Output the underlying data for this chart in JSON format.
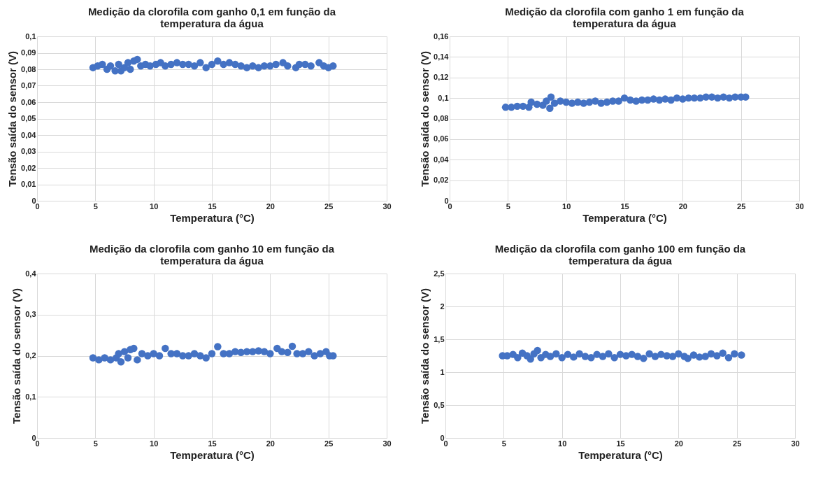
{
  "chart_data": [
    {
      "type": "scatter",
      "title": "Medição da clorofila com ganho 0,1 em função da temperatura da água",
      "xlabel": "Temperatura (°C)",
      "ylabel": "Tensão saída do sensor (V)",
      "marker": "circle",
      "grid": true,
      "xlim": [
        0,
        30
      ],
      "xticks": [
        0,
        5,
        10,
        15,
        20,
        25,
        30
      ],
      "ylim": [
        0,
        0.1
      ],
      "yticks": [
        0,
        {
          "value": 0.01,
          "label": "0,01"
        },
        {
          "value": 0.02,
          "label": "0,02"
        },
        {
          "value": 0.03,
          "label": "0,03"
        },
        {
          "value": 0.04,
          "label": "0,04"
        },
        {
          "value": 0.05,
          "label": "0,05"
        },
        {
          "value": 0.06,
          "label": "0,06"
        },
        {
          "value": 0.07,
          "label": "0,07"
        },
        {
          "value": 0.08,
          "label": "0,08"
        },
        {
          "value": 0.09,
          "label": "0,09"
        },
        {
          "value": 0.1,
          "label": "0,1"
        }
      ],
      "series": [
        {
          "color": "#4472c4",
          "x": [
            4.8,
            5.2,
            5.6,
            6.0,
            6.3,
            6.7,
            7.0,
            7.2,
            7.5,
            7.8,
            8.0,
            8.3,
            8.6,
            8.9,
            9.3,
            9.7,
            10.2,
            10.6,
            11.0,
            11.5,
            12.0,
            12.5,
            13.0,
            13.5,
            14.0,
            14.5,
            15.0,
            15.5,
            16.0,
            16.5,
            17.0,
            17.5,
            18.0,
            18.5,
            19.0,
            19.5,
            20.0,
            20.5,
            21.1,
            21.5,
            22.2,
            22.5,
            23.0,
            23.5,
            24.2,
            24.6,
            25.0,
            25.4
          ],
          "values": [
            0.081,
            0.082,
            0.083,
            0.08,
            0.082,
            0.079,
            0.083,
            0.079,
            0.081,
            0.084,
            0.08,
            0.085,
            0.086,
            0.082,
            0.083,
            0.082,
            0.083,
            0.084,
            0.082,
            0.083,
            0.084,
            0.083,
            0.083,
            0.082,
            0.084,
            0.081,
            0.083,
            0.085,
            0.083,
            0.084,
            0.083,
            0.082,
            0.081,
            0.082,
            0.081,
            0.082,
            0.082,
            0.083,
            0.084,
            0.082,
            0.081,
            0.083,
            0.083,
            0.082,
            0.084,
            0.082,
            0.081,
            0.082
          ]
        }
      ]
    },
    {
      "type": "scatter",
      "title": "Medição da clorofila com ganho 1 em função da temperatura da água",
      "xlabel": "Temperatura (°C)",
      "ylabel": "Tensão saída do sensor (V)",
      "marker": "circle",
      "grid": true,
      "xlim": [
        0,
        30
      ],
      "xticks": [
        0,
        5,
        10,
        15,
        20,
        25,
        30
      ],
      "ylim": [
        0,
        0.16
      ],
      "yticks": [
        0,
        {
          "value": 0.02,
          "label": "0,02"
        },
        {
          "value": 0.04,
          "label": "0,04"
        },
        {
          "value": 0.06,
          "label": "0,06"
        },
        {
          "value": 0.08,
          "label": "0,08"
        },
        {
          "value": 0.1,
          "label": "0,1"
        },
        {
          "value": 0.12,
          "label": "0,12"
        },
        {
          "value": 0.14,
          "label": "0,14"
        },
        {
          "value": 0.16,
          "label": "0,16"
        }
      ],
      "series": [
        {
          "color": "#4472c4",
          "x": [
            4.8,
            5.3,
            5.8,
            6.3,
            6.8,
            7.0,
            7.5,
            8.0,
            8.3,
            8.6,
            8.7,
            9.0,
            9.5,
            10.0,
            10.5,
            11.0,
            11.5,
            12.0,
            12.5,
            13.0,
            13.5,
            14.0,
            14.5,
            15.0,
            15.5,
            16.0,
            16.5,
            17.0,
            17.5,
            18.0,
            18.5,
            19.0,
            19.5,
            20.0,
            20.5,
            21.0,
            21.5,
            22.0,
            22.5,
            23.0,
            23.5,
            24.0,
            24.5,
            25.0,
            25.4
          ],
          "values": [
            0.091,
            0.091,
            0.092,
            0.092,
            0.091,
            0.096,
            0.094,
            0.093,
            0.097,
            0.09,
            0.101,
            0.095,
            0.097,
            0.096,
            0.095,
            0.096,
            0.095,
            0.096,
            0.097,
            0.095,
            0.096,
            0.097,
            0.097,
            0.1,
            0.098,
            0.097,
            0.098,
            0.098,
            0.099,
            0.098,
            0.099,
            0.098,
            0.1,
            0.099,
            0.1,
            0.1,
            0.1,
            0.101,
            0.101,
            0.1,
            0.101,
            0.1,
            0.101,
            0.101,
            0.101
          ]
        }
      ]
    },
    {
      "type": "scatter",
      "title": "Medição da clorofila com ganho 10 em função da temperatura da água",
      "xlabel": "Temperatura (°C)",
      "ylabel": "Tensão saída do sensor (V)",
      "marker": "circle",
      "grid": true,
      "xlim": [
        0,
        30
      ],
      "xticks": [
        0,
        5,
        10,
        15,
        20,
        25,
        30
      ],
      "ylim": [
        0,
        0.4
      ],
      "yticks": [
        0,
        {
          "value": 0.1,
          "label": "0,1"
        },
        {
          "value": 0.2,
          "label": "0,2"
        },
        {
          "value": 0.3,
          "label": "0,3"
        },
        {
          "value": 0.4,
          "label": "0,4"
        }
      ],
      "series": [
        {
          "color": "#4472c4",
          "x": [
            4.8,
            5.3,
            5.8,
            6.3,
            6.8,
            7.0,
            7.2,
            7.5,
            7.8,
            8.0,
            8.3,
            8.6,
            9.0,
            9.5,
            10.0,
            10.5,
            11.0,
            11.5,
            12.0,
            12.5,
            13.0,
            13.5,
            14.0,
            14.5,
            15.0,
            15.5,
            16.0,
            16.5,
            17.0,
            17.5,
            18.0,
            18.5,
            19.0,
            19.5,
            20.0,
            20.6,
            21.0,
            21.5,
            21.9,
            22.3,
            22.8,
            23.3,
            23.8,
            24.3,
            24.8,
            25.1,
            25.4
          ],
          "values": [
            0.195,
            0.19,
            0.195,
            0.19,
            0.195,
            0.205,
            0.185,
            0.21,
            0.195,
            0.215,
            0.218,
            0.19,
            0.205,
            0.2,
            0.205,
            0.2,
            0.218,
            0.205,
            0.205,
            0.2,
            0.2,
            0.205,
            0.2,
            0.195,
            0.205,
            0.222,
            0.205,
            0.205,
            0.21,
            0.208,
            0.21,
            0.21,
            0.212,
            0.21,
            0.205,
            0.218,
            0.21,
            0.208,
            0.223,
            0.205,
            0.205,
            0.21,
            0.2,
            0.205,
            0.21,
            0.2,
            0.2
          ]
        }
      ]
    },
    {
      "type": "scatter",
      "title": "Medição da clorofila com ganho 100 em função da temperatura da água",
      "xlabel": "Temperatura (°C)",
      "ylabel": "Tensão saída do sensor (V)",
      "marker": "circle",
      "grid": true,
      "xlim": [
        0,
        30
      ],
      "xticks": [
        0,
        5,
        10,
        15,
        20,
        25,
        30
      ],
      "ylim": [
        0,
        2.5
      ],
      "yticks": [
        0,
        {
          "value": 0.5,
          "label": "0,5"
        },
        1,
        {
          "value": 1.5,
          "label": "1,5"
        },
        2,
        {
          "value": 2.5,
          "label": "2,5"
        }
      ],
      "series": [
        {
          "color": "#4472c4",
          "x": [
            4.9,
            5.3,
            5.8,
            6.2,
            6.6,
            7.0,
            7.3,
            7.6,
            7.9,
            8.2,
            8.6,
            9.0,
            9.5,
            10.0,
            10.5,
            11.0,
            11.5,
            12.0,
            12.5,
            13.0,
            13.5,
            14.0,
            14.5,
            15.0,
            15.5,
            16.0,
            16.5,
            17.0,
            17.5,
            18.0,
            18.5,
            19.0,
            19.5,
            20.0,
            20.5,
            20.8,
            21.3,
            21.8,
            22.3,
            22.8,
            23.3,
            23.8,
            24.3,
            24.8,
            25.4
          ],
          "values": [
            1.25,
            1.25,
            1.27,
            1.22,
            1.29,
            1.25,
            1.2,
            1.28,
            1.33,
            1.22,
            1.27,
            1.24,
            1.28,
            1.22,
            1.27,
            1.23,
            1.28,
            1.24,
            1.22,
            1.27,
            1.24,
            1.28,
            1.22,
            1.27,
            1.25,
            1.27,
            1.24,
            1.21,
            1.28,
            1.24,
            1.27,
            1.25,
            1.24,
            1.28,
            1.24,
            1.21,
            1.26,
            1.23,
            1.24,
            1.28,
            1.25,
            1.29,
            1.22,
            1.28,
            1.26
          ]
        }
      ]
    }
  ]
}
